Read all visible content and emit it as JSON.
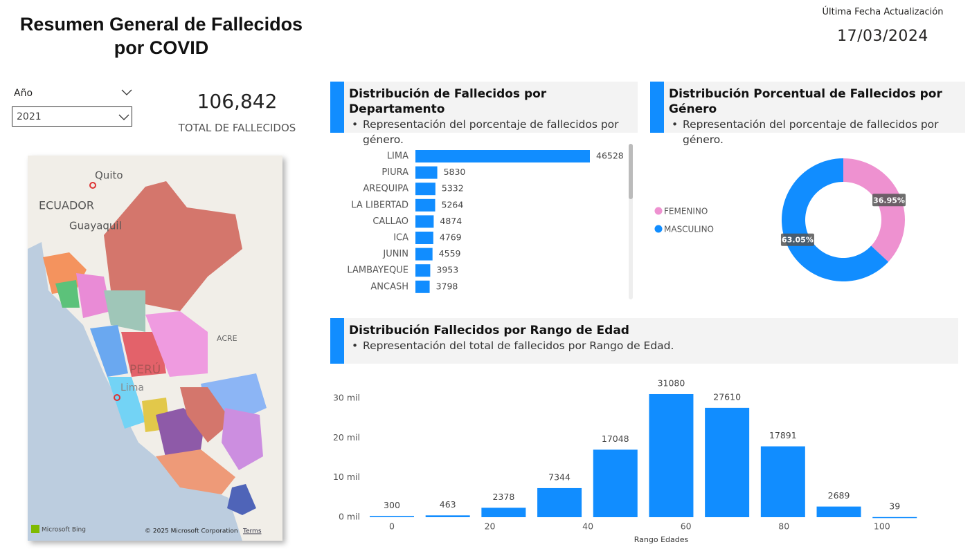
{
  "header": {
    "title": "Resumen General de Fallecidos por COVID",
    "update_label": "Última Fecha Actualización",
    "update_date": "17/03/2024"
  },
  "filter": {
    "label": "Año",
    "value": "2021"
  },
  "kpi": {
    "value": "106,842",
    "label": "TOTAL DE FALLECIDOS"
  },
  "map": {
    "labels": [
      "Quito",
      "ECUADOR",
      "Guayaquil",
      "ACRE",
      "PERÚ",
      "Lima"
    ],
    "provider": "Microsoft Bing",
    "attribution": "© 2025 Microsoft Corporation",
    "terms": "Terms"
  },
  "chart_data": [
    {
      "type": "bar",
      "orientation": "horizontal",
      "title": "Distribución de Fallecidos por Departamento",
      "subtitle": "Representación del porcentaje de fallecidos por género.",
      "categories": [
        "LIMA",
        "PIURA",
        "AREQUIPA",
        "LA LIBERTAD",
        "CALLAO",
        "ICA",
        "JUNIN",
        "LAMBAYEQUE",
        "ANCASH"
      ],
      "values": [
        46528,
        5830,
        5332,
        5264,
        4874,
        4769,
        4559,
        3953,
        3798
      ],
      "color": "#118dff"
    },
    {
      "type": "donut",
      "title": "Distribución Porcentual de Fallecidos por Género",
      "subtitle": "Representación del porcentaje de fallecidos por género.",
      "categories": [
        "FEMENINO",
        "MASCULINO"
      ],
      "values": [
        36.95,
        63.05
      ],
      "value_labels": [
        "36.95%",
        "63.05%"
      ],
      "colors": [
        "#ee91d0",
        "#118dff"
      ],
      "legend": "left"
    },
    {
      "type": "column",
      "title": "Distribución Fallecidos por Rango de Edad",
      "subtitle": "Representación del total de fallecidos por Rango de Edad.",
      "x": [
        0,
        11.4,
        22.8,
        34.2,
        45.6,
        57,
        68.4,
        79.8,
        91.2,
        102.6
      ],
      "values": [
        300,
        463,
        2378,
        7344,
        17048,
        31080,
        27610,
        17891,
        2689,
        39
      ],
      "color": "#118dff",
      "xlabel": "Rango Edades",
      "xlim": [
        -5,
        115
      ],
      "xticks": [
        0,
        20,
        40,
        60,
        80,
        100
      ],
      "ylim": [
        0,
        33000
      ],
      "yticks": [
        {
          "value": 0,
          "label": "0 mil"
        },
        {
          "value": 10000,
          "label": "10 mil"
        },
        {
          "value": 20000,
          "label": "20 mil"
        },
        {
          "value": 30000,
          "label": "30 mil"
        }
      ],
      "grid": false
    }
  ]
}
